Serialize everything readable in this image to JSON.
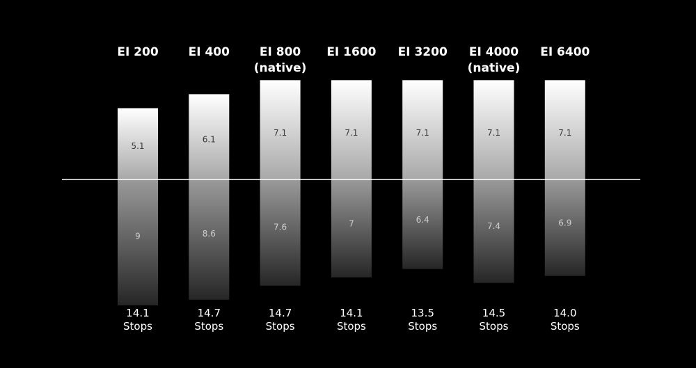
{
  "chart_data": {
    "type": "bar",
    "categories": [
      [
        "EI 200"
      ],
      [
        "EI 400"
      ],
      [
        "EI 800",
        "(native)"
      ],
      [
        "EI 1600"
      ],
      [
        "EI 3200"
      ],
      [
        "EI 4000",
        "(native)"
      ],
      [
        "EI 6400"
      ]
    ],
    "series": [
      {
        "values": [
          5.1,
          6.1,
          7.1,
          7.1,
          7.1,
          7.1,
          7.1
        ]
      },
      {
        "values": [
          9,
          8.6,
          7.6,
          7,
          6.4,
          7.4,
          6.9
        ]
      }
    ],
    "totals": [
      "14.1",
      "14.7",
      "14.7",
      "14.1",
      "13.5",
      "14.5",
      "14.0"
    ],
    "total_unit": "Stops",
    "colors": {
      "background": "#000000",
      "bar_light": "#ffffff",
      "bar_dark": "#2a2a2a",
      "baseline": "#ffffff"
    },
    "grid": false,
    "legend": "none"
  }
}
